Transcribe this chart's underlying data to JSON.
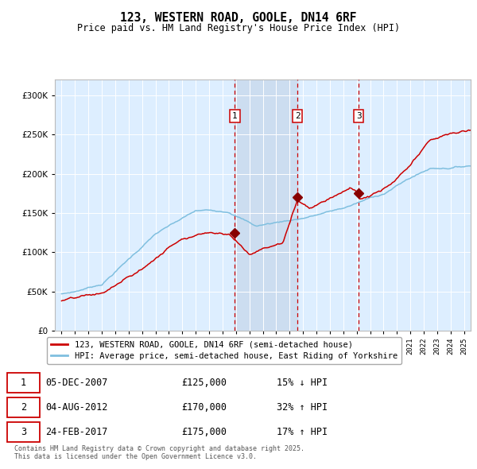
{
  "title": "123, WESTERN ROAD, GOOLE, DN14 6RF",
  "subtitle": "Price paid vs. HM Land Registry's House Price Index (HPI)",
  "legend_red": "123, WESTERN ROAD, GOOLE, DN14 6RF (semi-detached house)",
  "legend_blue": "HPI: Average price, semi-detached house, East Riding of Yorkshire",
  "sale1_date": "05-DEC-2007",
  "sale1_price": 125000,
  "sale1_hpi": "15% ↓ HPI",
  "sale2_date": "04-AUG-2012",
  "sale2_price": 170000,
  "sale2_hpi": "32% ↑ HPI",
  "sale3_date": "24-FEB-2017",
  "sale3_price": 175000,
  "sale3_hpi": "17% ↑ HPI",
  "sale1_x": 2007.92,
  "sale2_x": 2012.58,
  "sale3_x": 2017.15,
  "footnote": "Contains HM Land Registry data © Crown copyright and database right 2025.\nThis data is licensed under the Open Government Licence v3.0.",
  "plot_bg": "#ddeeff",
  "fig_bg": "#ffffff",
  "red_color": "#cc0000",
  "blue_color": "#7fbfdf",
  "marker_color": "#880000",
  "vline_color": "#cc0000",
  "span_color": "#ccddf0",
  "ylim_max": 320000,
  "ylim_min": 0,
  "xlim_min": 1994.5,
  "xlim_max": 2025.5
}
